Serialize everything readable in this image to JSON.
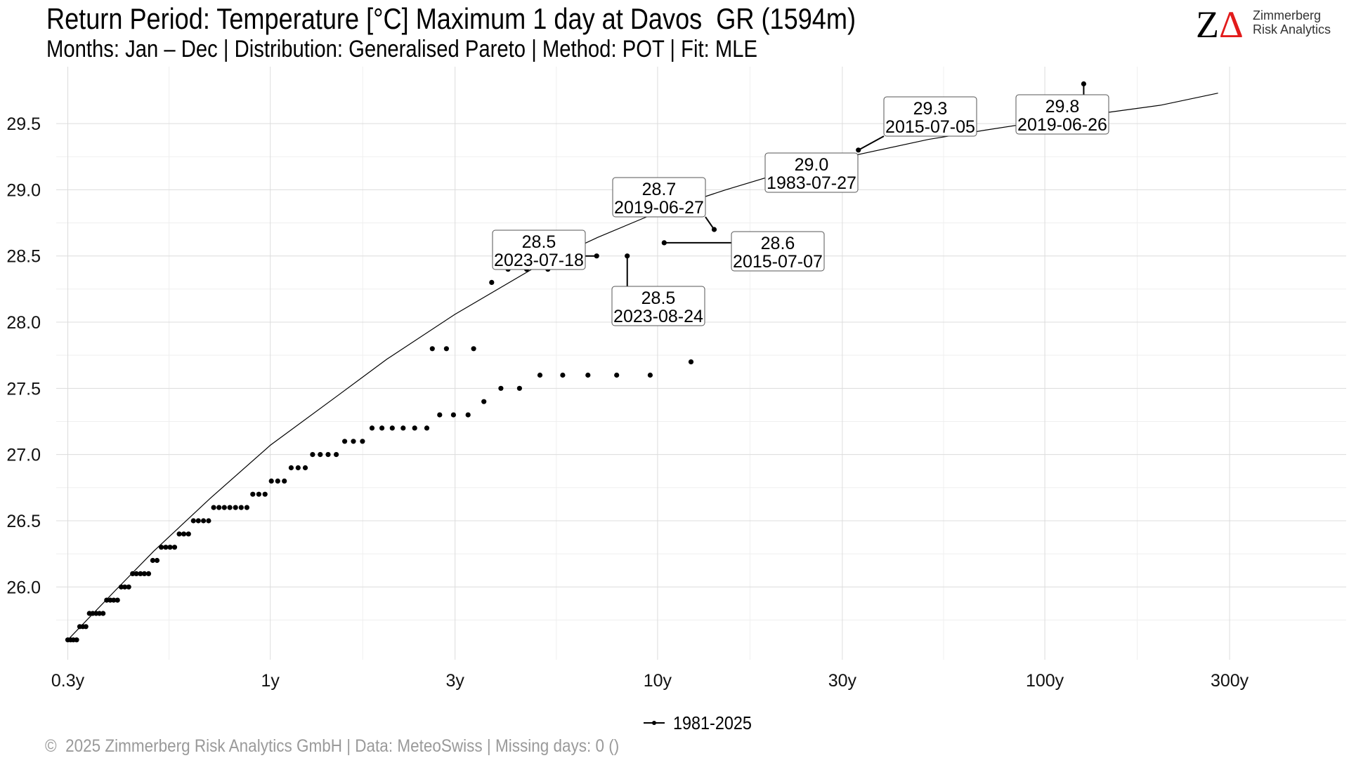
{
  "header": {
    "title": "Return Period: Temperature [°C] Maximum 1 day at Davos  GR (1594m)",
    "subtitle": "Months: Jan – Dec | Distribution: Generalised Pareto | Method: POT | Fit: MLE"
  },
  "logo": {
    "mark_z": "Z",
    "mark_delta": "Δ",
    "line1": "Zimmerberg",
    "line2": "Risk Analytics",
    "accent_color": "#e21b1b"
  },
  "footer": {
    "text": "©  2025 Zimmerberg Risk Analytics GmbH | Data: MeteoSwiss | Missing days: 0 ()"
  },
  "chart_data": {
    "type": "scatter",
    "title": "",
    "xlabel": "",
    "ylabel": "",
    "x_scale": "log",
    "xlim": [
      0.28,
      600
    ],
    "ylim": [
      25.45,
      29.93
    ],
    "x_ticks": [
      {
        "value": 0.3,
        "label": "0.3y"
      },
      {
        "value": 1,
        "label": "1y"
      },
      {
        "value": 3,
        "label": "3y"
      },
      {
        "value": 10,
        "label": "10y"
      },
      {
        "value": 30,
        "label": "30y"
      },
      {
        "value": 100,
        "label": "100y"
      },
      {
        "value": 300,
        "label": "300y"
      }
    ],
    "y_ticks": [
      {
        "value": 26.0,
        "label": "26.0"
      },
      {
        "value": 26.5,
        "label": "26.5"
      },
      {
        "value": 27.0,
        "label": "27.0"
      },
      {
        "value": 27.5,
        "label": "27.5"
      },
      {
        "value": 28.0,
        "label": "28.0"
      },
      {
        "value": 28.5,
        "label": "28.5"
      },
      {
        "value": 29.0,
        "label": "29.0"
      },
      {
        "value": 29.5,
        "label": "29.5"
      }
    ],
    "grid": true,
    "legend": {
      "position": "bottom",
      "entries": [
        "1981-2025"
      ]
    },
    "series": [
      {
        "name": "1981-2025",
        "type": "scatter",
        "color": "#000000",
        "points": [
          {
            "x": 0.3,
            "y": 25.6
          },
          {
            "x": 0.305,
            "y": 25.6
          },
          {
            "x": 0.31,
            "y": 25.6
          },
          {
            "x": 0.316,
            "y": 25.6
          },
          {
            "x": 0.322,
            "y": 25.7
          },
          {
            "x": 0.328,
            "y": 25.7
          },
          {
            "x": 0.334,
            "y": 25.7
          },
          {
            "x": 0.341,
            "y": 25.8
          },
          {
            "x": 0.348,
            "y": 25.8
          },
          {
            "x": 0.355,
            "y": 25.8
          },
          {
            "x": 0.362,
            "y": 25.8
          },
          {
            "x": 0.37,
            "y": 25.8
          },
          {
            "x": 0.378,
            "y": 25.9
          },
          {
            "x": 0.386,
            "y": 25.9
          },
          {
            "x": 0.394,
            "y": 25.9
          },
          {
            "x": 0.403,
            "y": 25.9
          },
          {
            "x": 0.412,
            "y": 26.0
          },
          {
            "x": 0.421,
            "y": 26.0
          },
          {
            "x": 0.431,
            "y": 26.0
          },
          {
            "x": 0.441,
            "y": 26.1
          },
          {
            "x": 0.451,
            "y": 26.1
          },
          {
            "x": 0.462,
            "y": 26.1
          },
          {
            "x": 0.473,
            "y": 26.1
          },
          {
            "x": 0.485,
            "y": 26.1
          },
          {
            "x": 0.497,
            "y": 26.2
          },
          {
            "x": 0.51,
            "y": 26.2
          },
          {
            "x": 0.523,
            "y": 26.3
          },
          {
            "x": 0.537,
            "y": 26.3
          },
          {
            "x": 0.551,
            "y": 26.3
          },
          {
            "x": 0.566,
            "y": 26.3
          },
          {
            "x": 0.582,
            "y": 26.4
          },
          {
            "x": 0.598,
            "y": 26.4
          },
          {
            "x": 0.615,
            "y": 26.4
          },
          {
            "x": 0.633,
            "y": 26.5
          },
          {
            "x": 0.652,
            "y": 26.5
          },
          {
            "x": 0.672,
            "y": 26.5
          },
          {
            "x": 0.693,
            "y": 26.5
          },
          {
            "x": 0.714,
            "y": 26.6
          },
          {
            "x": 0.737,
            "y": 26.6
          },
          {
            "x": 0.761,
            "y": 26.6
          },
          {
            "x": 0.786,
            "y": 26.6
          },
          {
            "x": 0.813,
            "y": 26.6
          },
          {
            "x": 0.841,
            "y": 26.6
          },
          {
            "x": 0.87,
            "y": 26.6
          },
          {
            "x": 0.901,
            "y": 26.7
          },
          {
            "x": 0.934,
            "y": 26.7
          },
          {
            "x": 0.969,
            "y": 26.7
          },
          {
            "x": 1.006,
            "y": 26.8
          },
          {
            "x": 1.045,
            "y": 26.8
          },
          {
            "x": 1.087,
            "y": 26.8
          },
          {
            "x": 1.132,
            "y": 26.9
          },
          {
            "x": 1.18,
            "y": 26.9
          },
          {
            "x": 1.231,
            "y": 26.9
          },
          {
            "x": 1.286,
            "y": 27.0
          },
          {
            "x": 1.346,
            "y": 27.0
          },
          {
            "x": 1.41,
            "y": 27.0
          },
          {
            "x": 1.48,
            "y": 27.0
          },
          {
            "x": 1.556,
            "y": 27.1
          },
          {
            "x": 1.639,
            "y": 27.1
          },
          {
            "x": 1.73,
            "y": 27.1
          },
          {
            "x": 1.831,
            "y": 27.2
          },
          {
            "x": 1.942,
            "y": 27.2
          },
          {
            "x": 2.065,
            "y": 27.2
          },
          {
            "x": 2.203,
            "y": 27.2
          },
          {
            "x": 2.359,
            "y": 27.2
          },
          {
            "x": 2.536,
            "y": 27.2
          },
          {
            "x": 2.738,
            "y": 27.3
          },
          {
            "x": 2.971,
            "y": 27.3
          },
          {
            "x": 3.241,
            "y": 27.3
          },
          {
            "x": 3.56,
            "y": 27.4
          },
          {
            "x": 3.94,
            "y": 27.5
          },
          {
            "x": 4.4,
            "y": 27.5
          },
          {
            "x": 4.97,
            "y": 27.6
          },
          {
            "x": 5.69,
            "y": 27.6
          },
          {
            "x": 6.61,
            "y": 27.6
          },
          {
            "x": 7.84,
            "y": 27.6
          },
          {
            "x": 9.57,
            "y": 27.6
          },
          {
            "x": 12.2,
            "y": 27.7
          },
          {
            "x": 2.62,
            "y": 27.8
          },
          {
            "x": 2.85,
            "y": 27.8
          },
          {
            "x": 3.35,
            "y": 27.8
          },
          {
            "x": 3.73,
            "y": 28.3
          },
          {
            "x": 4.11,
            "y": 28.4
          },
          {
            "x": 4.59,
            "y": 28.4
          },
          {
            "x": 5.21,
            "y": 28.4
          },
          {
            "x": 6.96,
            "y": 28.5
          },
          {
            "x": 8.35,
            "y": 28.5
          },
          {
            "x": 10.4,
            "y": 28.6
          },
          {
            "x": 14.0,
            "y": 28.7
          },
          {
            "x": 22.5,
            "y": 29.0
          },
          {
            "x": 33.0,
            "y": 29.3
          },
          {
            "x": 126.0,
            "y": 29.8
          }
        ]
      },
      {
        "name": "",
        "type": "line",
        "color": "#000000",
        "points": [
          {
            "x": 0.3,
            "y": 25.6
          },
          {
            "x": 0.4,
            "y": 25.98
          },
          {
            "x": 0.5,
            "y": 26.27
          },
          {
            "x": 0.7,
            "y": 26.67
          },
          {
            "x": 1.0,
            "y": 27.07
          },
          {
            "x": 1.5,
            "y": 27.45
          },
          {
            "x": 2.0,
            "y": 27.72
          },
          {
            "x": 3.0,
            "y": 28.06
          },
          {
            "x": 5.0,
            "y": 28.44
          },
          {
            "x": 7.0,
            "y": 28.64
          },
          {
            "x": 10.0,
            "y": 28.83
          },
          {
            "x": 15.0,
            "y": 29.0
          },
          {
            "x": 20.0,
            "y": 29.11
          },
          {
            "x": 30.0,
            "y": 29.24
          },
          {
            "x": 50.0,
            "y": 29.38
          },
          {
            "x": 70.0,
            "y": 29.45
          },
          {
            "x": 100.0,
            "y": 29.52
          },
          {
            "x": 150.0,
            "y": 29.59
          },
          {
            "x": 200.0,
            "y": 29.64
          },
          {
            "x": 280.0,
            "y": 29.73
          }
        ]
      }
    ],
    "annotations": [
      {
        "value": "29.8",
        "date": "2019-06-26",
        "x": 126.0,
        "y": 29.8
      },
      {
        "value": "29.3",
        "date": "2015-07-05",
        "x": 33.0,
        "y": 29.3
      },
      {
        "value": "29.0",
        "date": "1983-07-27",
        "x": 22.5,
        "y": 29.0
      },
      {
        "value": "28.7",
        "date": "2019-06-27",
        "x": 14.0,
        "y": 28.7
      },
      {
        "value": "28.6",
        "date": "2015-07-07",
        "x": 10.4,
        "y": 28.6
      },
      {
        "value": "28.5",
        "date": "2023-07-18",
        "x": 6.96,
        "y": 28.5
      },
      {
        "value": "28.5",
        "date": "2023-08-24",
        "x": 8.35,
        "y": 28.5
      }
    ]
  }
}
